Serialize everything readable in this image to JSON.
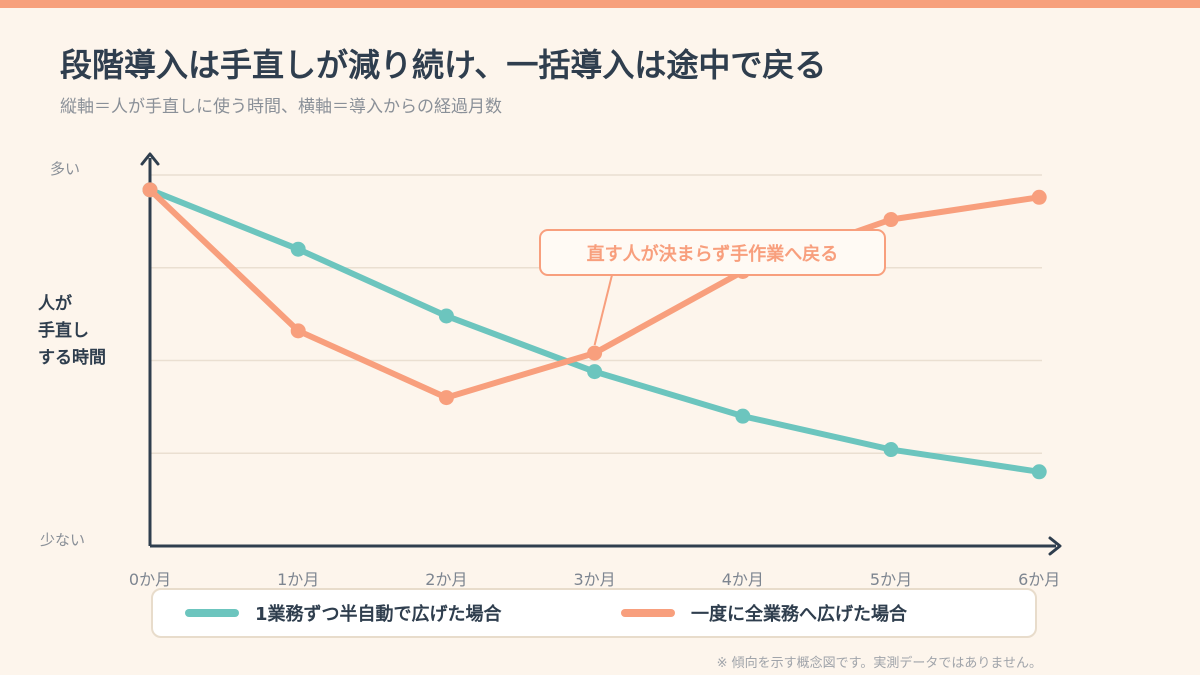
{
  "title": "段階導入は手直しが減り続け、一括導入は途中で戻る",
  "subtitle": "縦軸＝人が手直しに使う時間、横軸＝導入からの経過月数",
  "footnote": "※ 傾向を示す概念図です。実測データではありません。",
  "colors": {
    "background": "#fdf5ec",
    "accent_bar": "#f7a07c",
    "teal": "#6cc5be",
    "orange": "#f89f7d",
    "axis": "#2f3e4e",
    "grid": "#eadfd1"
  },
  "chart_data": {
    "type": "line",
    "title": "段階導入は手直しが減り続け、一括導入は途中で戻る",
    "ylabel": "人が手直しする時間",
    "ylabel_lines": [
      "人が",
      "手直し",
      "する時間"
    ],
    "y_tick_labels": {
      "high": "多い",
      "low": "少ない"
    },
    "ylim": [
      0,
      100
    ],
    "grid": true,
    "legend_position": "bottom",
    "categories": [
      "0か月",
      "1か月",
      "2か月",
      "3か月",
      "4か月",
      "5か月",
      "6か月"
    ],
    "series": [
      {
        "name": "1業務ずつ半自動で広げた場合",
        "color": "#6cc5be",
        "values": [
          96,
          80,
          62,
          47,
          35,
          26,
          20
        ]
      },
      {
        "name": "一度に全業務へ広げた場合",
        "color": "#f89f7d",
        "values": [
          96,
          58,
          40,
          52,
          74,
          88,
          94
        ]
      }
    ],
    "annotation": {
      "text": "直す人が決まらず手作業へ戻る",
      "series_index": 1,
      "point_index": 3
    }
  }
}
